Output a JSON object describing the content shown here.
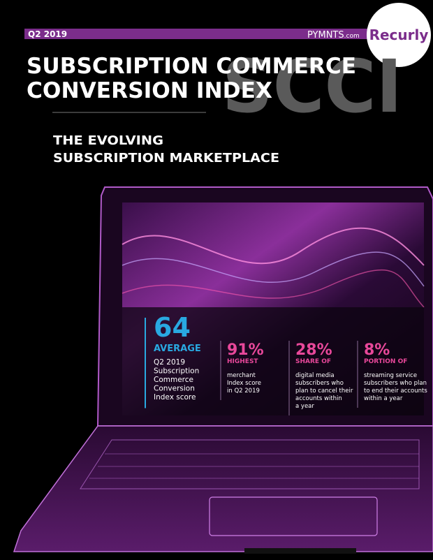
{
  "header": {
    "quarter": "Q2 2019",
    "brand": "PYMNTS",
    "brand_suffix": ".com",
    "partner": "Recurly"
  },
  "title": {
    "line1": "SUBSCRIPTION COMMERCE",
    "line2": "CONVERSION INDEX",
    "watermark": "SCCI"
  },
  "subtitle": {
    "line1": "THE EVOLVING",
    "line2": "SUBSCRIPTION MARKETPLACE"
  },
  "stats": [
    {
      "value": "64",
      "label": "AVERAGE",
      "description": [
        "Q2 2019",
        "Subscription",
        "Commerce",
        "Conversion",
        "Index score"
      ]
    },
    {
      "value": "91%",
      "label": "HIGHEST",
      "description": [
        "merchant",
        "Index score",
        "in Q2 2019"
      ]
    },
    {
      "value": "28%",
      "label": "SHARE OF",
      "description": [
        "digital media",
        "subscribers who",
        "plan to cancel their",
        "accounts within",
        "a year"
      ]
    },
    {
      "value": "8%",
      "label": "PORTION OF",
      "description": [
        "streaming service",
        "subscribers who plan",
        "to end their accounts",
        "within a year"
      ]
    }
  ]
}
